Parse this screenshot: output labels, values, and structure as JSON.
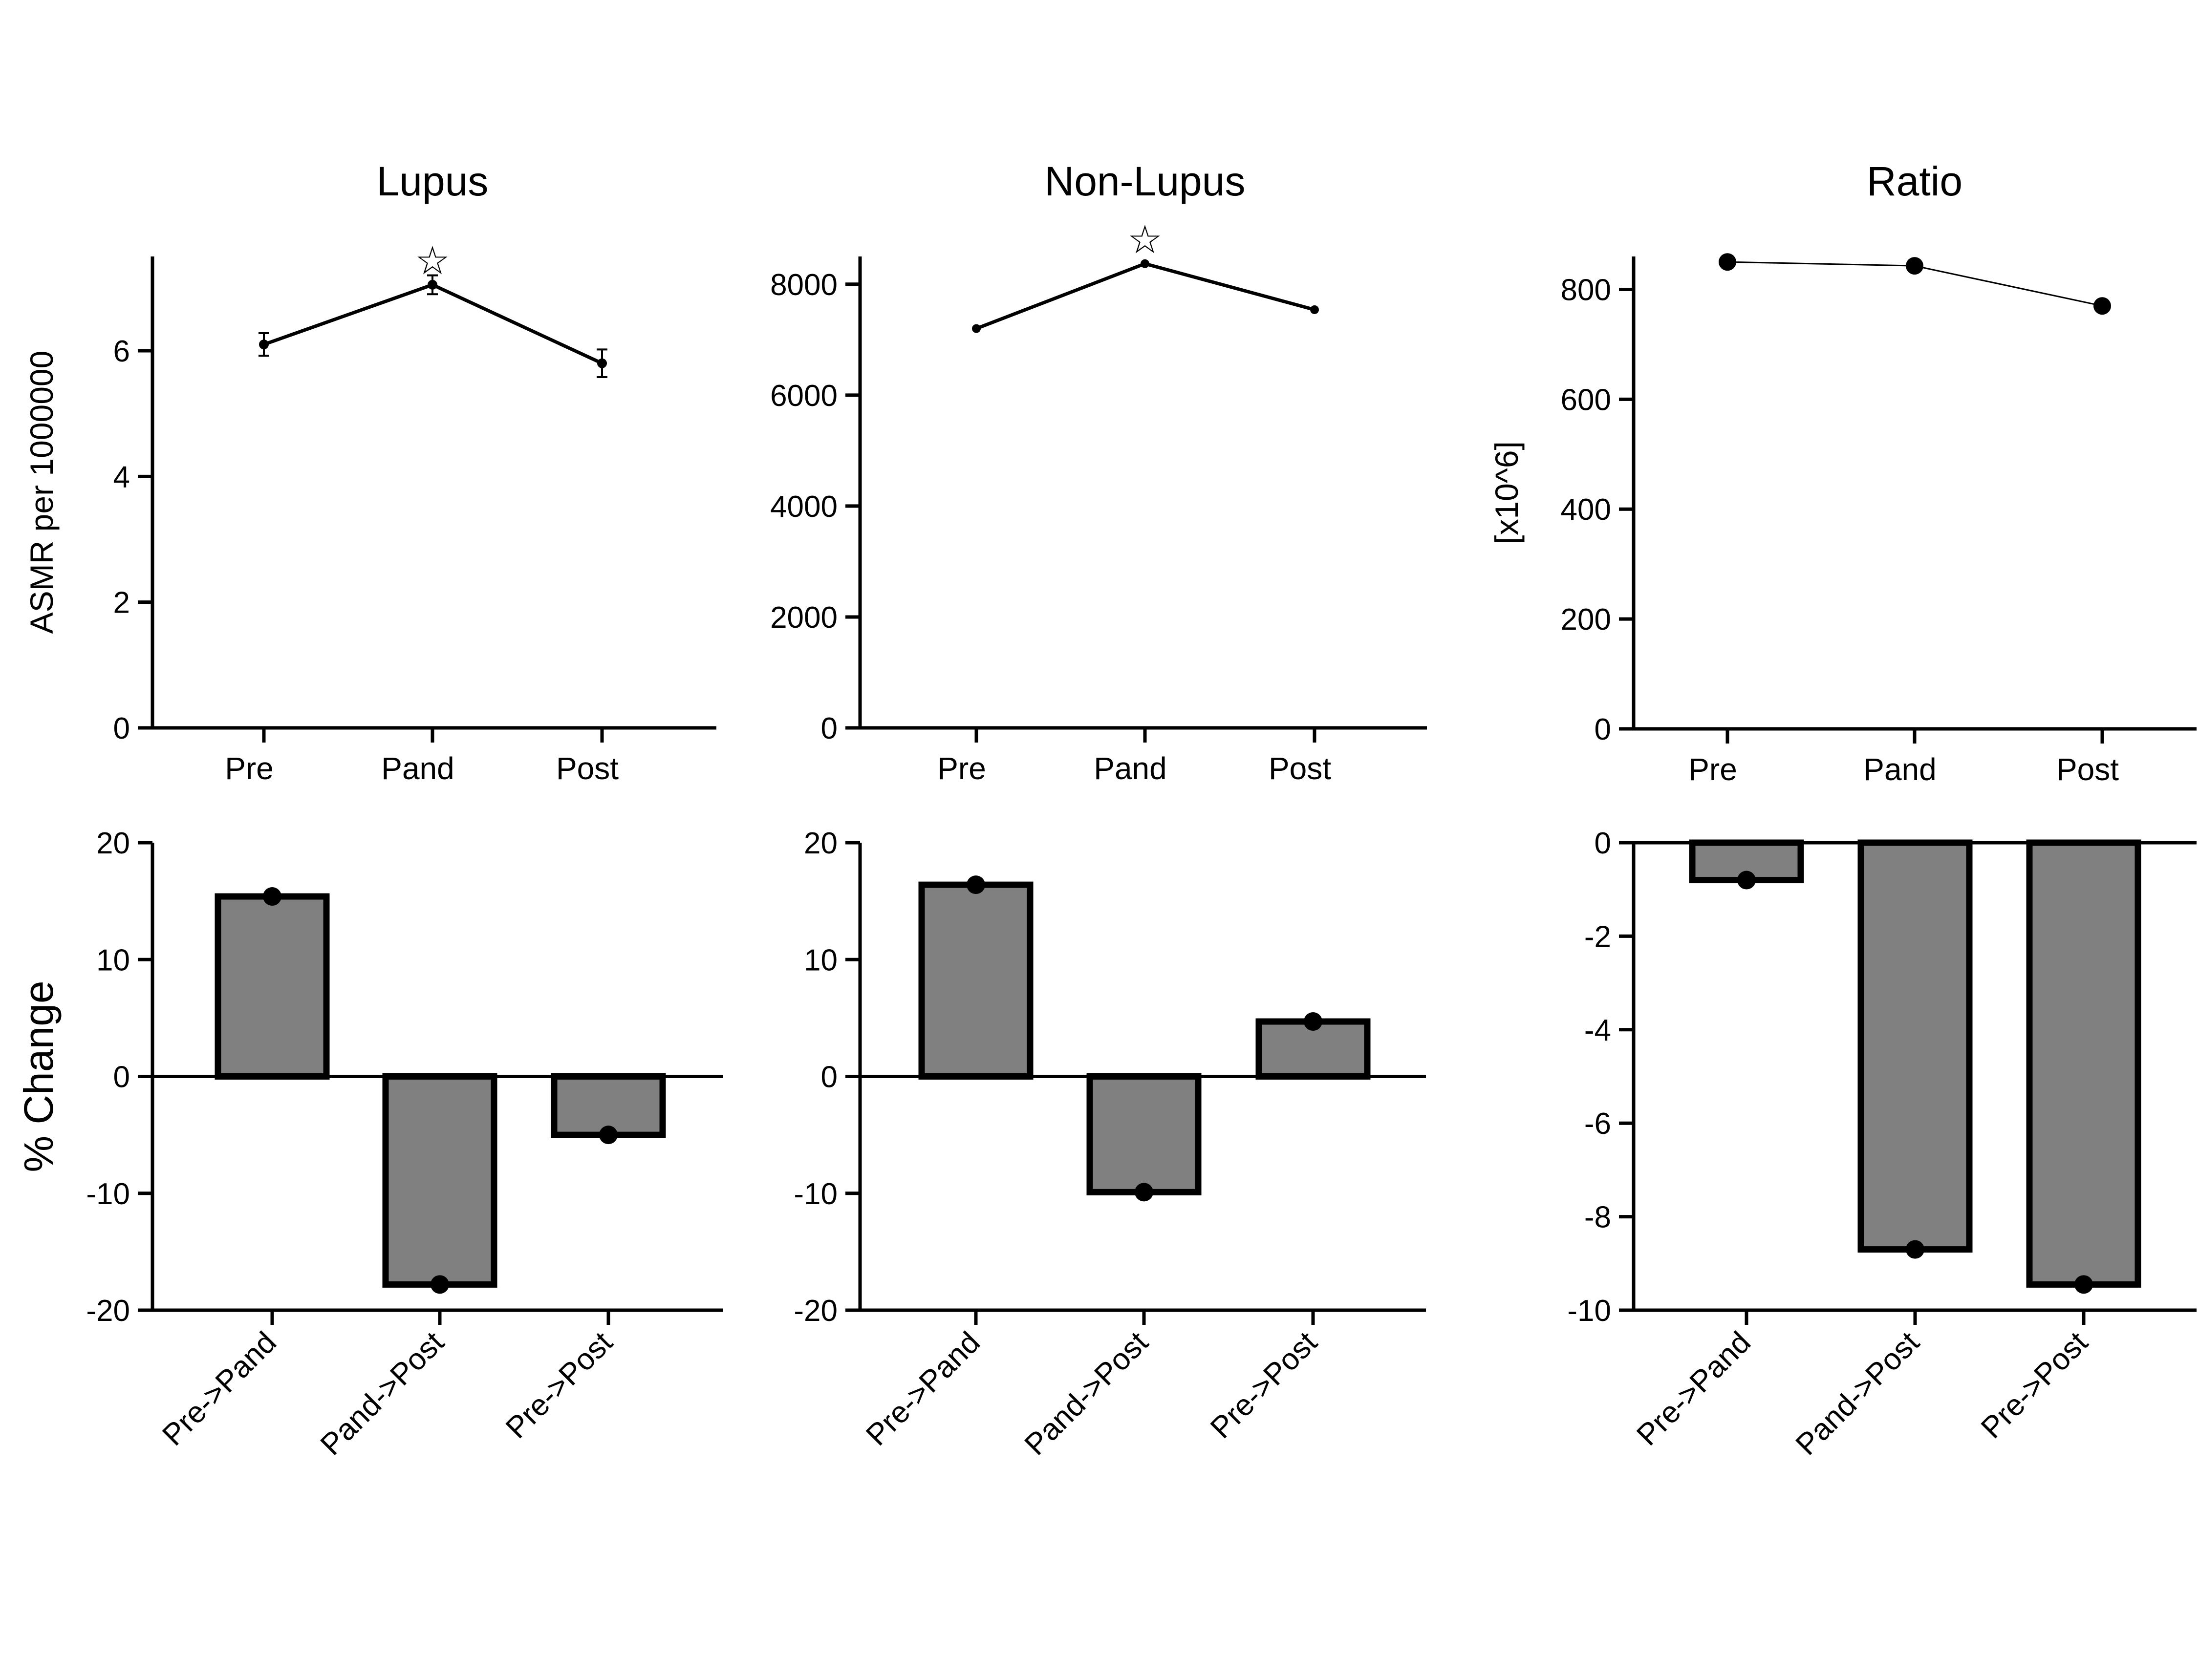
{
  "chart_data": [
    {
      "id": "lupus_line",
      "type": "line",
      "title": "Lupus",
      "ylabel": "ASMR per 1000000",
      "xlabel": "",
      "categories": [
        "Pre",
        "Pand",
        "Post"
      ],
      "values": [
        6.1,
        7.05,
        5.8
      ],
      "error": [
        0.18,
        0.15,
        0.22
      ],
      "ylim": [
        0,
        7.5
      ],
      "yticks": [
        0,
        2,
        4,
        6
      ],
      "significance_marker": {
        "category": "Pand",
        "symbol": "☆"
      },
      "marker": "small-dot",
      "grid": false
    },
    {
      "id": "nonlupus_line",
      "type": "line",
      "title": "Non-Lupus",
      "ylabel": "",
      "xlabel": "",
      "categories": [
        "Pre",
        "Pand",
        "Post"
      ],
      "values": [
        7200,
        8370,
        7540
      ],
      "ylim": [
        0,
        8500
      ],
      "yticks": [
        0,
        2000,
        4000,
        6000,
        8000
      ],
      "significance_marker": {
        "category": "Pand",
        "symbol": "☆"
      },
      "marker": "small-dot",
      "grid": false
    },
    {
      "id": "ratio_line",
      "type": "line",
      "title": "Ratio",
      "ylabel": "[x10^6]",
      "xlabel": "",
      "categories": [
        "Pre",
        "Pand",
        "Post"
      ],
      "values": [
        850,
        843,
        770
      ],
      "ylim": [
        0,
        860
      ],
      "yticks": [
        0,
        200,
        400,
        600,
        800
      ],
      "marker": "large-dot",
      "grid": false
    },
    {
      "id": "lupus_change",
      "type": "bar",
      "title": "",
      "ylabel": "% Change",
      "xlabel": "",
      "categories": [
        "Pre->Pand",
        "Pand->Post",
        "Pre->Post"
      ],
      "values": [
        15.4,
        -17.8,
        -5.0
      ],
      "ylim": [
        -20,
        20
      ],
      "yticks": [
        -20,
        -10,
        0,
        10,
        20
      ],
      "bar_color": "#808080",
      "grid": false
    },
    {
      "id": "nonlupus_change",
      "type": "bar",
      "title": "",
      "ylabel": "",
      "xlabel": "",
      "categories": [
        "Pre->Pand",
        "Pand->Post",
        "Pre->Post"
      ],
      "values": [
        16.4,
        -9.9,
        4.7
      ],
      "ylim": [
        -20,
        20
      ],
      "yticks": [
        -20,
        -10,
        0,
        10,
        20
      ],
      "bar_color": "#808080",
      "grid": false
    },
    {
      "id": "ratio_change",
      "type": "bar",
      "title": "",
      "ylabel": "",
      "xlabel": "",
      "categories": [
        "Pre->Pand",
        "Pand->Post",
        "Pre->Post"
      ],
      "values": [
        -0.8,
        -8.7,
        -9.45
      ],
      "ylim": [
        -10,
        0
      ],
      "yticks": [
        -10,
        -8,
        -6,
        -4,
        -2,
        0
      ],
      "bar_color": "#808080",
      "grid": false
    }
  ]
}
